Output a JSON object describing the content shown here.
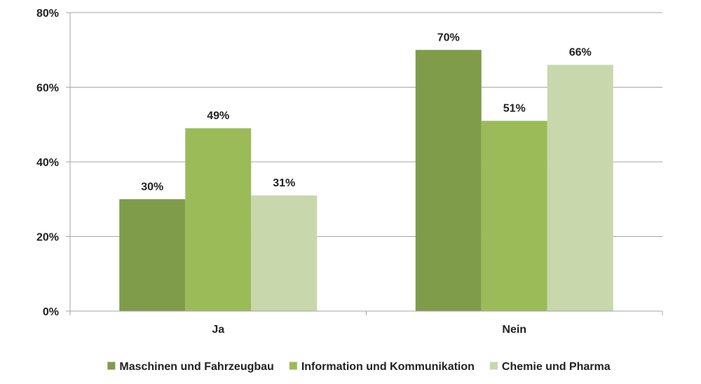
{
  "chart_data": {
    "type": "bar",
    "categories": [
      "Ja",
      "Nein"
    ],
    "series": [
      {
        "name": "Maschinen und Fahrzeugbau",
        "values": [
          30,
          70
        ],
        "labels": [
          "30%",
          "70%"
        ],
        "color": "#7f9c4b"
      },
      {
        "name": "Information und Kommunikation",
        "values": [
          49,
          51
        ],
        "labels": [
          "49%",
          "51%"
        ],
        "color": "#9bbb59"
      },
      {
        "name": "Chemie und Pharma",
        "values": [
          31,
          66
        ],
        "labels": [
          "31%",
          "66%"
        ],
        "color": "#c8d7ac"
      }
    ],
    "ylim": [
      0,
      80
    ],
    "yticks": [
      0,
      20,
      40,
      60,
      80
    ],
    "ytick_labels": [
      "0%",
      "20%",
      "40%",
      "60%",
      "80%"
    ],
    "grid": true,
    "legend_position": "bottom",
    "grid_color": "#a6a6a6",
    "axis_color": "#a6a6a6"
  }
}
